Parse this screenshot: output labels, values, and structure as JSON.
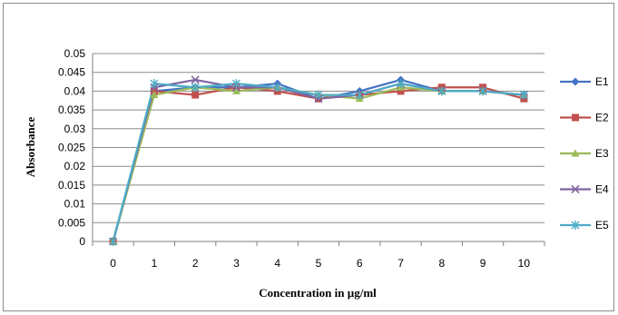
{
  "chart_data": {
    "type": "line",
    "xlabel": "Concentration in µg/ml",
    "ylabel": "Absorbance",
    "categories": [
      "0",
      "1",
      "2",
      "3",
      "4",
      "5",
      "6",
      "7",
      "8",
      "9",
      "10"
    ],
    "ylim": [
      0,
      0.05
    ],
    "yticks": [
      "0.05",
      "0.045",
      "0.04",
      "0.035",
      "0.03",
      "0.025",
      "0.02",
      "0.015",
      "0.01",
      "0.005",
      "0"
    ],
    "grid": true,
    "legend_position": "right",
    "series": [
      {
        "name": "E1",
        "color": "#4472C4",
        "marker": "diamond",
        "values": [
          0,
          0.04,
          0.041,
          0.041,
          0.042,
          0.038,
          0.04,
          0.043,
          0.04,
          0.04,
          0.039
        ]
      },
      {
        "name": "E2",
        "color": "#C0504D",
        "marker": "square",
        "values": [
          0,
          0.04,
          0.039,
          0.041,
          0.04,
          0.038,
          0.039,
          0.04,
          0.041,
          0.041,
          0.038
        ]
      },
      {
        "name": "E3",
        "color": "#9BBB59",
        "marker": "triangle",
        "values": [
          0,
          0.039,
          0.041,
          0.04,
          0.041,
          0.039,
          0.038,
          0.041,
          0.04,
          0.04,
          0.039
        ]
      },
      {
        "name": "E4",
        "color": "#8064A2",
        "marker": "x",
        "values": [
          0,
          0.041,
          0.043,
          0.041,
          0.041,
          0.038,
          0.039,
          0.042,
          0.04,
          0.04,
          0.039
        ]
      },
      {
        "name": "E5",
        "color": "#4BACC6",
        "marker": "star",
        "values": [
          0,
          0.042,
          0.041,
          0.042,
          0.041,
          0.039,
          0.039,
          0.042,
          0.04,
          0.04,
          0.039
        ]
      }
    ]
  }
}
